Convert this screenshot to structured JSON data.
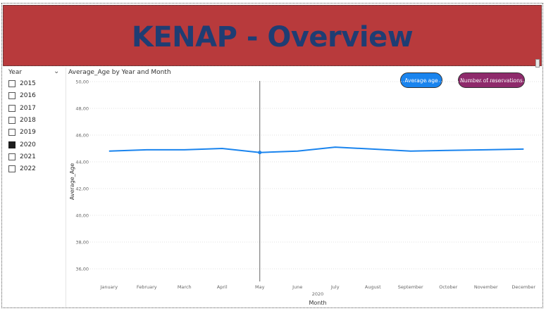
{
  "header": {
    "title": "KENAP - Overview",
    "bg_color": "#b83a3c",
    "title_color": "#1f3d73"
  },
  "slicer": {
    "title": "Year",
    "items": [
      {
        "label": "2015",
        "checked": false
      },
      {
        "label": "2016",
        "checked": false
      },
      {
        "label": "2017",
        "checked": false
      },
      {
        "label": "2018",
        "checked": false
      },
      {
        "label": "2019",
        "checked": false
      },
      {
        "label": "2020",
        "checked": true
      },
      {
        "label": "2021",
        "checked": false
      },
      {
        "label": "2022",
        "checked": false
      }
    ]
  },
  "buttons": {
    "average_age": "Average age",
    "number_of_reservations": "Number of reservations"
  },
  "chart_data": {
    "type": "line",
    "title": "Average_Age by Year and Month",
    "xlabel": "Month",
    "x_group_label": "2020",
    "ylabel": "Average_Age",
    "categories": [
      "January",
      "February",
      "March",
      "April",
      "May",
      "June",
      "July",
      "August",
      "September",
      "October",
      "November",
      "December"
    ],
    "y_ticks": [
      "50,00",
      "48,00",
      "46,00",
      "44,00",
      "42,00",
      "40,00",
      "38,00",
      "36,00"
    ],
    "ylim": [
      35,
      50
    ],
    "series": [
      {
        "values": [
          44.8,
          44.9,
          44.9,
          45.0,
          44.7,
          44.8,
          45.1,
          44.95,
          44.8,
          44.85,
          44.9,
          44.95
        ],
        "color": "#1a84ee"
      }
    ],
    "highlight_category": "May",
    "grid": true
  }
}
